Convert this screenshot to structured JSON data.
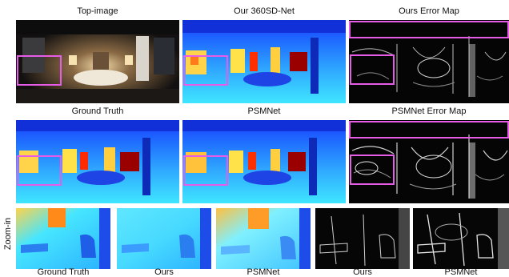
{
  "row1": {
    "titles": [
      "Top-image",
      "Our 360SD-Net",
      "Ours Error Map"
    ]
  },
  "row2": {
    "titles": [
      "Ground Truth",
      "PSMNet",
      "PSMNet Error Map"
    ]
  },
  "row3": {
    "side_label": "Zoom-in",
    "captions": [
      "Ground Truth",
      "Ours",
      "PSMNet",
      "Ours",
      "PSMNet"
    ]
  },
  "colors": {
    "highlight_box": "#e65ce6",
    "depth_far": "#1a3cff",
    "depth_mid": "#2fd2ff",
    "depth_near": "#ff2a00",
    "depth_max": "#9a0000"
  }
}
